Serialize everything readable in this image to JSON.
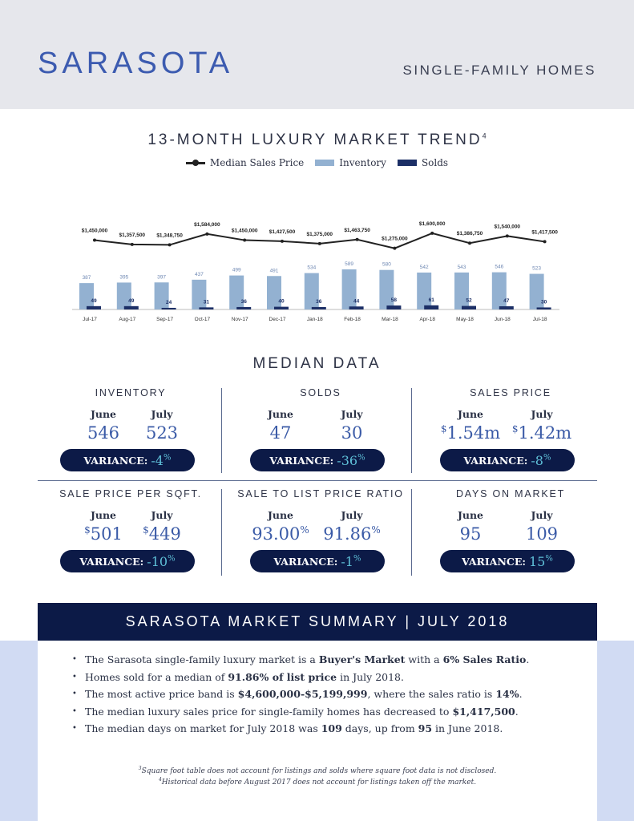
{
  "header": {
    "city": "SARASOTA",
    "subtitle": "SINGLE-FAMILY HOMES"
  },
  "trend": {
    "title": "13-MONTH LUXURY MARKET TREND",
    "title_note": "4"
  },
  "chart_data": {
    "type": "bar",
    "categories": [
      "Jul-17",
      "Aug-17",
      "Sep-17",
      "Oct-17",
      "Nov-17",
      "Dec-17",
      "Jan-18",
      "Feb-18",
      "Mar-18",
      "Apr-18",
      "May-18",
      "Jun-18",
      "Jul-18"
    ],
    "series": [
      {
        "name": "Median Sales Price",
        "type": "line",
        "values": [
          1450000,
          1357500,
          1348750,
          1584000,
          1450000,
          1427500,
          1375000,
          1463750,
          1275000,
          1600000,
          1386750,
          1540000,
          1417500
        ],
        "labels": [
          "$1,450,000",
          "$1,357,500",
          "$1,348,750",
          "$1,584,000",
          "$1,450,000",
          "$1,427,500",
          "$1,375,000",
          "$1,463,750",
          "$1,275,000",
          "$1,600,000",
          "$1,386,750",
          "$1,540,000",
          "$1,417,500"
        ]
      },
      {
        "name": "Inventory",
        "type": "bar",
        "values": [
          387,
          395,
          397,
          437,
          499,
          491,
          534,
          589,
          580,
          542,
          543,
          546,
          523
        ]
      },
      {
        "name": "Solds",
        "type": "bar",
        "values": [
          49,
          49,
          24,
          31,
          36,
          40,
          36,
          44,
          58,
          61,
          52,
          47,
          30
        ]
      }
    ],
    "colors": {
      "line": "#222222",
      "inventory": "#93b1d1",
      "solds": "#1c2f66"
    }
  },
  "median": {
    "title": "MEDIAN DATA",
    "col_june": "June",
    "col_july": "July",
    "variance_label": "VARIANCE:",
    "cells": [
      {
        "label": "INVENTORY",
        "june": "546",
        "july": "523",
        "variance": "-4",
        "unit": "%",
        "prefix": "",
        "suffix_june": "",
        "suffix_july": ""
      },
      {
        "label": "SOLDS",
        "june": "47",
        "july": "30",
        "variance": "-36",
        "unit": "%",
        "prefix": "",
        "suffix_june": "",
        "suffix_july": ""
      },
      {
        "label": "SALES PRICE",
        "june": "1.54m",
        "july": "1.42m",
        "variance": "-8",
        "unit": "%",
        "prefix": "$",
        "suffix_june": "",
        "suffix_july": ""
      },
      {
        "label": "SALE PRICE PER SQFT.",
        "june": "501",
        "july": "449",
        "variance": "-10",
        "unit": "%",
        "prefix": "$",
        "suffix_june": "",
        "suffix_july": ""
      },
      {
        "label": "SALE TO LIST PRICE RATIO",
        "june": "93.00",
        "july": "91.86",
        "variance": "-1",
        "unit": "%",
        "prefix": "",
        "suffix_june": "%",
        "suffix_july": "%"
      },
      {
        "label": "DAYS ON MARKET",
        "june": "95",
        "july": "109",
        "variance": "15",
        "unit": "%",
        "prefix": "",
        "suffix_june": "",
        "suffix_july": ""
      }
    ]
  },
  "summary": {
    "title": "SARASOTA MARKET SUMMARY | JULY 2018",
    "items": [
      [
        {
          "t": "The Sarasota single-family luxury market is a "
        },
        {
          "t": "Buyer's Market",
          "b": true
        },
        {
          "t": " with a "
        },
        {
          "t": "6% Sales Ratio",
          "b": true
        },
        {
          "t": "."
        }
      ],
      [
        {
          "t": "Homes sold for a median of "
        },
        {
          "t": "91.86% of list price",
          "b": true
        },
        {
          "t": " in July 2018."
        }
      ],
      [
        {
          "t": "The most active price band is "
        },
        {
          "t": "$4,600,000-$5,199,999",
          "b": true
        },
        {
          "t": ", where the sales ratio is "
        },
        {
          "t": "14%",
          "b": true
        },
        {
          "t": "."
        }
      ],
      [
        {
          "t": "The median luxury sales price for single-family homes has decreased to "
        },
        {
          "t": "$1,417,500",
          "b": true
        },
        {
          "t": "."
        }
      ],
      [
        {
          "t": "The median days on market for July 2018 was "
        },
        {
          "t": "109",
          "b": true
        },
        {
          "t": " days, up from "
        },
        {
          "t": "95",
          "b": true
        },
        {
          "t": " in June 2018."
        }
      ]
    ],
    "footnote1_mark": "3",
    "footnote1": "Square foot table does not account for listings and solds where square foot data is not disclosed.",
    "footnote2_mark": "4",
    "footnote2": "Historical data before August 2017 does not account for listings taken off the market."
  }
}
